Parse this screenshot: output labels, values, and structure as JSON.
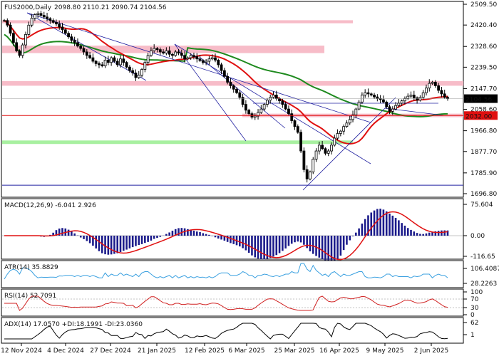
{
  "header": {
    "symbol": "FUS2000",
    "timeframe": "Daily",
    "ohlc": "2098.80 2110.21 2090.74 2104.56"
  },
  "colors": {
    "bg": "#ffffff",
    "border": "#000000",
    "bull_candle": "#000000",
    "bear_candle": "#000000",
    "ma_fast": "#e01010",
    "ma_slow": "#1e8a1e",
    "trendline": "#2020a0",
    "zone_pink": "#f7bcc8",
    "zone_green": "#a8f0a0",
    "macd_hist": "#1a1a8a",
    "macd_signal": "#e01010",
    "atr": "#3aa0e0",
    "rsi": "#d02020",
    "adx": "#000000",
    "price_tag_bg": "#000000",
    "level_tag_bg": "#e01010"
  },
  "price_axis": {
    "ticks": [
      "2509.50",
      "2420.40",
      "2328.60",
      "2239.50",
      "2147.70",
      "2058.60",
      "1966.80",
      "1877.70",
      "1785.90",
      "1696.80"
    ],
    "tick_values": [
      2509.5,
      2420.4,
      2328.6,
      2239.5,
      2147.7,
      2058.6,
      1966.8,
      1877.7,
      1785.9,
      1696.8
    ],
    "current_price_label": "2104.56",
    "current_price": 2104.56,
    "level_label": "2032.00",
    "level_value": 2032.0
  },
  "date_axis": [
    "12 Nov 2024",
    "4 Dec 2024",
    "27 Dec 2024",
    "21 Jan 2025",
    "12 Feb 2025",
    "6 Mar 2025",
    "25 Mar 2025",
    "16 Apr 2025",
    "9 May 2025",
    "2 Jun 2025"
  ],
  "indicators": {
    "macd": {
      "label": "MACD(12,26,9) -6.041 2.926",
      "ticks": [
        "75.604",
        "0.00",
        "-116.65"
      ]
    },
    "atr": {
      "label": "ATR(14) 35.8829",
      "ticks": [
        "106.4087",
        "28.2263"
      ]
    },
    "rsi": {
      "label": "RSI(14) 52.7091",
      "ticks": [
        "100",
        "70",
        "30",
        "0"
      ]
    },
    "adx": {
      "label": "ADX(14) 17.0570 +DI:18.1991 -DI:23.0360",
      "ticks": [
        "62",
        "1"
      ]
    }
  },
  "chart_data": {
    "type": "candlestick",
    "title": "FUS2000,Daily",
    "ylim": [
      1696.8,
      2509.5
    ],
    "closes": [
      2440,
      2420,
      2385,
      2345,
      2310,
      2290,
      2335,
      2380,
      2420,
      2450,
      2465,
      2470,
      2462,
      2455,
      2448,
      2440,
      2432,
      2425,
      2412,
      2400,
      2385,
      2370,
      2355,
      2345,
      2330,
      2320,
      2305,
      2290,
      2280,
      2265,
      2255,
      2250,
      2245,
      2270,
      2260,
      2280,
      2265,
      2250,
      2275,
      2260,
      2240,
      2225,
      2215,
      2195,
      2205,
      2230,
      2260,
      2290,
      2310,
      2320,
      2315,
      2305,
      2300,
      2310,
      2295,
      2290,
      2305,
      2300,
      2290,
      2275,
      2280,
      2290,
      2285,
      2275,
      2268,
      2260,
      2265,
      2275,
      2280,
      2270,
      2250,
      2225,
      2200,
      2175,
      2160,
      2145,
      2130,
      2110,
      2080,
      2055,
      2040,
      2025,
      2030,
      2045,
      2060,
      2080,
      2098,
      2110,
      2120,
      2105,
      2095,
      2080,
      2060,
      2040,
      2010,
      1985,
      1960,
      1880,
      1800,
      1760,
      1790,
      1845,
      1880,
      1905,
      1890,
      1870,
      1880,
      1905,
      1935,
      1955,
      1965,
      1985,
      2000,
      2015,
      2035,
      2060,
      2090,
      2120,
      2130,
      2125,
      2120,
      2112,
      2105,
      2100,
      2090,
      2070,
      2050,
      2060,
      2075,
      2085,
      2095,
      2105,
      2115,
      2120,
      2108,
      2098,
      2110,
      2130,
      2150,
      2170,
      2175,
      2160,
      2140,
      2125,
      2110,
      2104.56
    ]
  }
}
